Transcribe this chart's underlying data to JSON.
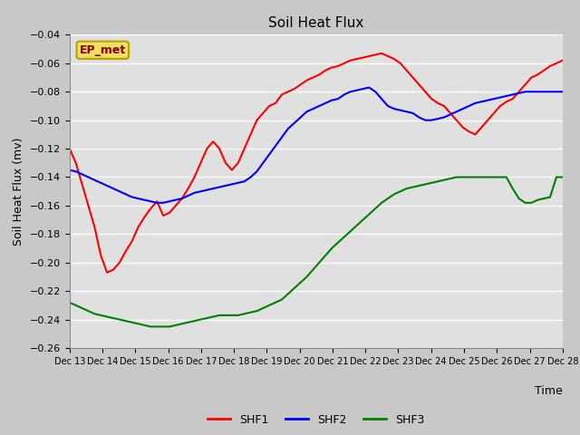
{
  "title": "Soil Heat Flux",
  "xlabel": "Time",
  "ylabel": "Soil Heat Flux (mv)",
  "ylim": [
    -0.26,
    -0.04
  ],
  "yticks": [
    -0.26,
    -0.24,
    -0.22,
    -0.2,
    -0.18,
    -0.16,
    -0.14,
    -0.12,
    -0.1,
    -0.08,
    -0.06,
    -0.04
  ],
  "xtick_labels": [
    "Dec 13",
    "Dec 14",
    "Dec 15",
    "Dec 16",
    "Dec 17",
    "Dec 18",
    "Dec 19",
    "Dec 20",
    "Dec 21",
    "Dec 22",
    "Dec 23",
    "Dec 24",
    "Dec 25",
    "Dec 26",
    "Dec 27",
    "Dec 28"
  ],
  "annotation_label": "EP_met",
  "plot_bg_color": "#e0e0e0",
  "fig_bg_color": "#c8c8c8",
  "legend_entries": [
    "SHF1",
    "SHF2",
    "SHF3"
  ],
  "colors": [
    "red",
    "blue",
    "green"
  ],
  "line_width": 1.5,
  "SHF1": [
    -0.12,
    -0.13,
    -0.145,
    -0.16,
    -0.175,
    -0.195,
    -0.207,
    -0.205,
    -0.2,
    -0.192,
    -0.185,
    -0.175,
    -0.168,
    -0.162,
    -0.157,
    -0.167,
    -0.165,
    -0.16,
    -0.155,
    -0.148,
    -0.14,
    -0.13,
    -0.12,
    -0.115,
    -0.12,
    -0.13,
    -0.135,
    -0.13,
    -0.12,
    -0.11,
    -0.1,
    -0.095,
    -0.09,
    -0.088,
    -0.082,
    -0.08,
    -0.078,
    -0.075,
    -0.072,
    -0.07,
    -0.068,
    -0.065,
    -0.063,
    -0.062,
    -0.06,
    -0.058,
    -0.057,
    -0.056,
    -0.055,
    -0.054,
    -0.053,
    -0.055,
    -0.057,
    -0.06,
    -0.065,
    -0.07,
    -0.075,
    -0.08,
    -0.085,
    -0.088,
    -0.09,
    -0.095,
    -0.1,
    -0.105,
    -0.108,
    -0.11,
    -0.105,
    -0.1,
    -0.095,
    -0.09,
    -0.087,
    -0.085,
    -0.08,
    -0.075,
    -0.07,
    -0.068,
    -0.065,
    -0.062,
    -0.06,
    -0.058
  ],
  "SHF2": [
    -0.135,
    -0.136,
    -0.138,
    -0.14,
    -0.142,
    -0.144,
    -0.146,
    -0.148,
    -0.15,
    -0.152,
    -0.154,
    -0.155,
    -0.156,
    -0.157,
    -0.158,
    -0.158,
    -0.157,
    -0.156,
    -0.155,
    -0.153,
    -0.151,
    -0.15,
    -0.149,
    -0.148,
    -0.147,
    -0.146,
    -0.145,
    -0.144,
    -0.143,
    -0.14,
    -0.136,
    -0.13,
    -0.124,
    -0.118,
    -0.112,
    -0.106,
    -0.102,
    -0.098,
    -0.094,
    -0.092,
    -0.09,
    -0.088,
    -0.086,
    -0.085,
    -0.082,
    -0.08,
    -0.079,
    -0.078,
    -0.077,
    -0.08,
    -0.085,
    -0.09,
    -0.092,
    -0.093,
    -0.094,
    -0.095,
    -0.098,
    -0.1,
    -0.1,
    -0.099,
    -0.098,
    -0.096,
    -0.094,
    -0.092,
    -0.09,
    -0.088,
    -0.087,
    -0.086,
    -0.085,
    -0.084,
    -0.083,
    -0.082,
    -0.081,
    -0.08,
    -0.08,
    -0.08,
    -0.08,
    -0.08,
    -0.08,
    -0.08
  ],
  "SHF3": [
    -0.228,
    -0.23,
    -0.232,
    -0.234,
    -0.236,
    -0.237,
    -0.238,
    -0.239,
    -0.24,
    -0.241,
    -0.242,
    -0.243,
    -0.244,
    -0.245,
    -0.245,
    -0.245,
    -0.245,
    -0.244,
    -0.243,
    -0.242,
    -0.241,
    -0.24,
    -0.239,
    -0.238,
    -0.237,
    -0.237,
    -0.237,
    -0.237,
    -0.236,
    -0.235,
    -0.234,
    -0.232,
    -0.23,
    -0.228,
    -0.226,
    -0.222,
    -0.218,
    -0.214,
    -0.21,
    -0.205,
    -0.2,
    -0.195,
    -0.19,
    -0.186,
    -0.182,
    -0.178,
    -0.174,
    -0.17,
    -0.166,
    -0.162,
    -0.158,
    -0.155,
    -0.152,
    -0.15,
    -0.148,
    -0.147,
    -0.146,
    -0.145,
    -0.144,
    -0.143,
    -0.142,
    -0.141,
    -0.14,
    -0.14,
    -0.14,
    -0.14,
    -0.14,
    -0.14,
    -0.14,
    -0.14,
    -0.14,
    -0.148,
    -0.155,
    -0.158,
    -0.158,
    -0.156,
    -0.155,
    -0.154,
    -0.14,
    -0.14
  ]
}
